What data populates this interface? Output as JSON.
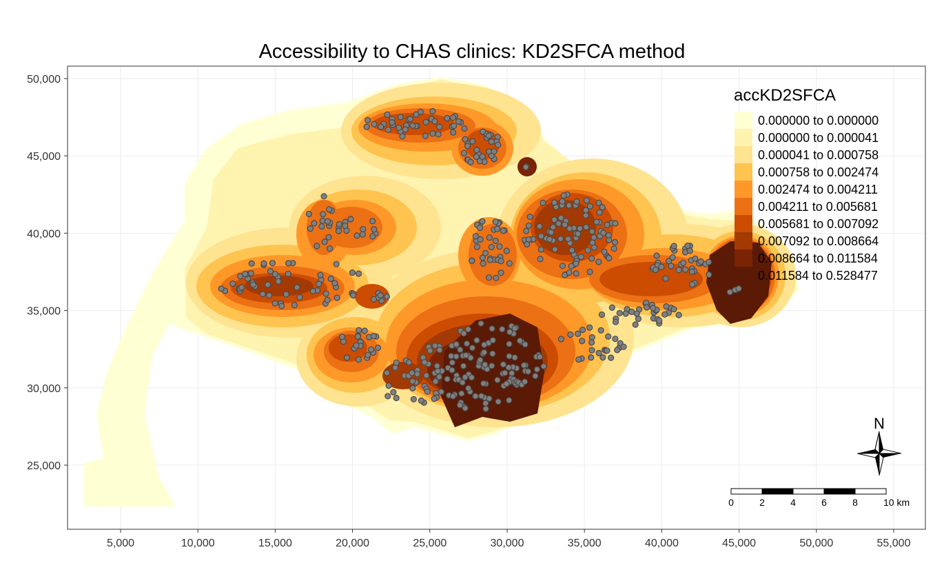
{
  "title": "Accessibility to CHAS clinics: KD2SFCA method",
  "axes": {
    "x_ticks": [
      "5,000",
      "10,000",
      "15,000",
      "20,000",
      "25,000",
      "30,000",
      "35,000",
      "40,000",
      "45,000",
      "50,000",
      "55,000"
    ],
    "y_ticks": [
      "50,000",
      "45,000",
      "40,000",
      "35,000",
      "30,000",
      "25,000"
    ]
  },
  "legend": {
    "title": "accKD2SFCA",
    "items": [
      {
        "label": "0.000000 to 0.000000",
        "color": "#ffffd4"
      },
      {
        "label": "0.000000 to 0.000041",
        "color": "#fff3b0"
      },
      {
        "label": "0.000041 to 0.000758",
        "color": "#fee391"
      },
      {
        "label": "0.000758 to 0.002474",
        "color": "#fec44f"
      },
      {
        "label": "0.002474 to 0.004211",
        "color": "#fe9929"
      },
      {
        "label": "0.004211 to 0.005681",
        "color": "#ec7014"
      },
      {
        "label": "0.005681 to 0.007092",
        "color": "#cc4c02"
      },
      {
        "label": "0.007092 to 0.008664",
        "color": "#a33a03"
      },
      {
        "label": "0.008664 to 0.011584",
        "color": "#7a2305"
      },
      {
        "label": "0.011584 to 0.528477",
        "color": "#5a1a06"
      }
    ]
  },
  "scale_bar": {
    "labels": [
      "0",
      "2",
      "4",
      "6",
      "8",
      "10 km"
    ]
  },
  "north_arrow": {
    "label": "N"
  },
  "clinic_point_color": "#808080"
}
